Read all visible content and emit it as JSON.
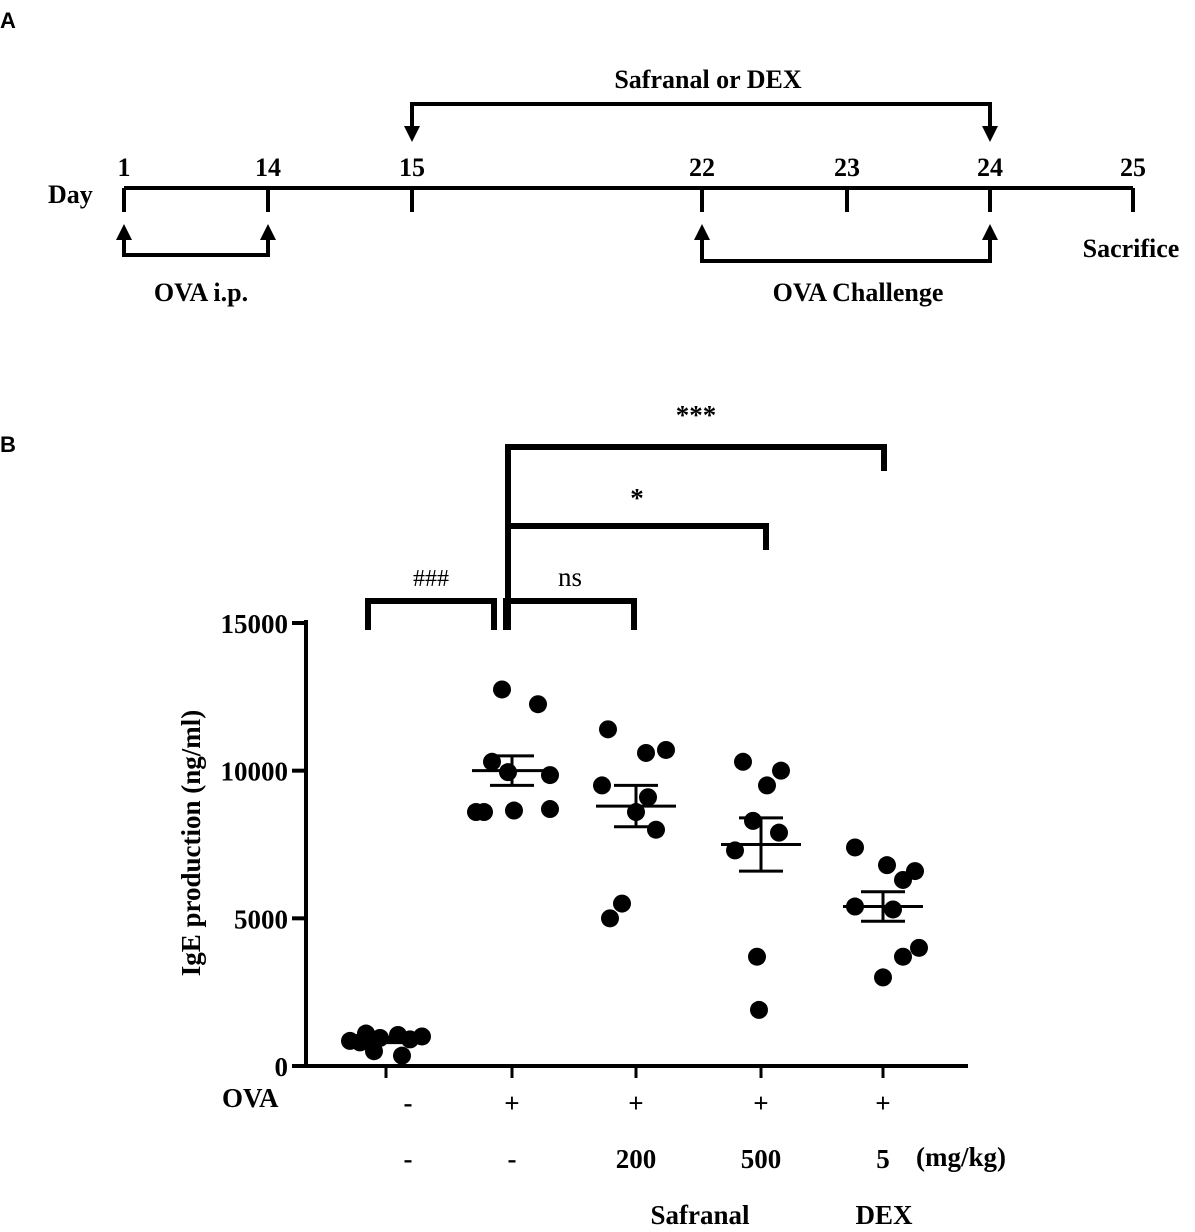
{
  "panel_a": {
    "letter": "A",
    "day_label": "Day",
    "days": [
      {
        "label": "1",
        "value": 1
      },
      {
        "label": "14",
        "value": 14
      },
      {
        "label": "15",
        "value": 15
      },
      {
        "label": "22",
        "value": 22
      },
      {
        "label": "23",
        "value": 23
      },
      {
        "label": "24",
        "value": 24
      },
      {
        "label": "25",
        "value": 25
      }
    ],
    "treatment_label": "Safranal or DEX",
    "treatment_range": [
      15,
      24
    ],
    "sensitization_label": "OVA i.p.",
    "sensitization_range": [
      1,
      14
    ],
    "challenge_label": "OVA Challenge",
    "challenge_range": [
      22,
      24
    ],
    "sacrifice_label": "Sacrifice",
    "sacrifice_day": 25
  },
  "panel_b": {
    "letter": "B",
    "row_labels": {
      "ova": "OVA",
      "unit": "(mg/kg)",
      "safranal": "Safranal",
      "dex": "DEX"
    },
    "groups": [
      {
        "ova": "-",
        "dose": "-"
      },
      {
        "ova": "+",
        "dose": "-"
      },
      {
        "ova": "+",
        "dose": "200"
      },
      {
        "ova": "+",
        "dose": "500"
      },
      {
        "ova": "+",
        "dose": "5"
      }
    ],
    "significance": [
      {
        "label": "###",
        "from": 0,
        "to": 1
      },
      {
        "label": "ns",
        "from": 1,
        "to": 2
      },
      {
        "label": "*",
        "from": 1,
        "to": 3
      },
      {
        "label": "***",
        "from": 1,
        "to": 4
      }
    ]
  },
  "chart_data": {
    "type": "scatter",
    "ylabel": "IgE production (ng/ml)",
    "ylim": [
      0,
      15000
    ],
    "yticks": [
      0,
      5000,
      10000,
      15000
    ],
    "yticks_labels": [
      "0",
      "5000",
      "10000",
      "15000"
    ],
    "series": [
      {
        "points": [
          1100,
          1050,
          1000,
          950,
          900,
          850,
          800,
          500,
          350
        ],
        "mean": 880,
        "sem": 90
      },
      {
        "points": [
          12750,
          12250,
          10300,
          9950,
          9850,
          8600,
          8650,
          8700,
          8600
        ],
        "mean": 10000,
        "sem": 500
      },
      {
        "points": [
          11400,
          10700,
          10600,
          9500,
          9100,
          8600,
          8000,
          5500,
          5000
        ],
        "mean": 8800,
        "sem": 700
      },
      {
        "points": [
          10300,
          10000,
          9500,
          8300,
          7900,
          7300,
          3700,
          1900
        ],
        "mean": 7500,
        "sem": 900
      },
      {
        "points": [
          7400,
          6800,
          6600,
          6300,
          5400,
          5300,
          4000,
          3700,
          3000
        ],
        "mean": 5400,
        "sem": 500
      }
    ]
  }
}
